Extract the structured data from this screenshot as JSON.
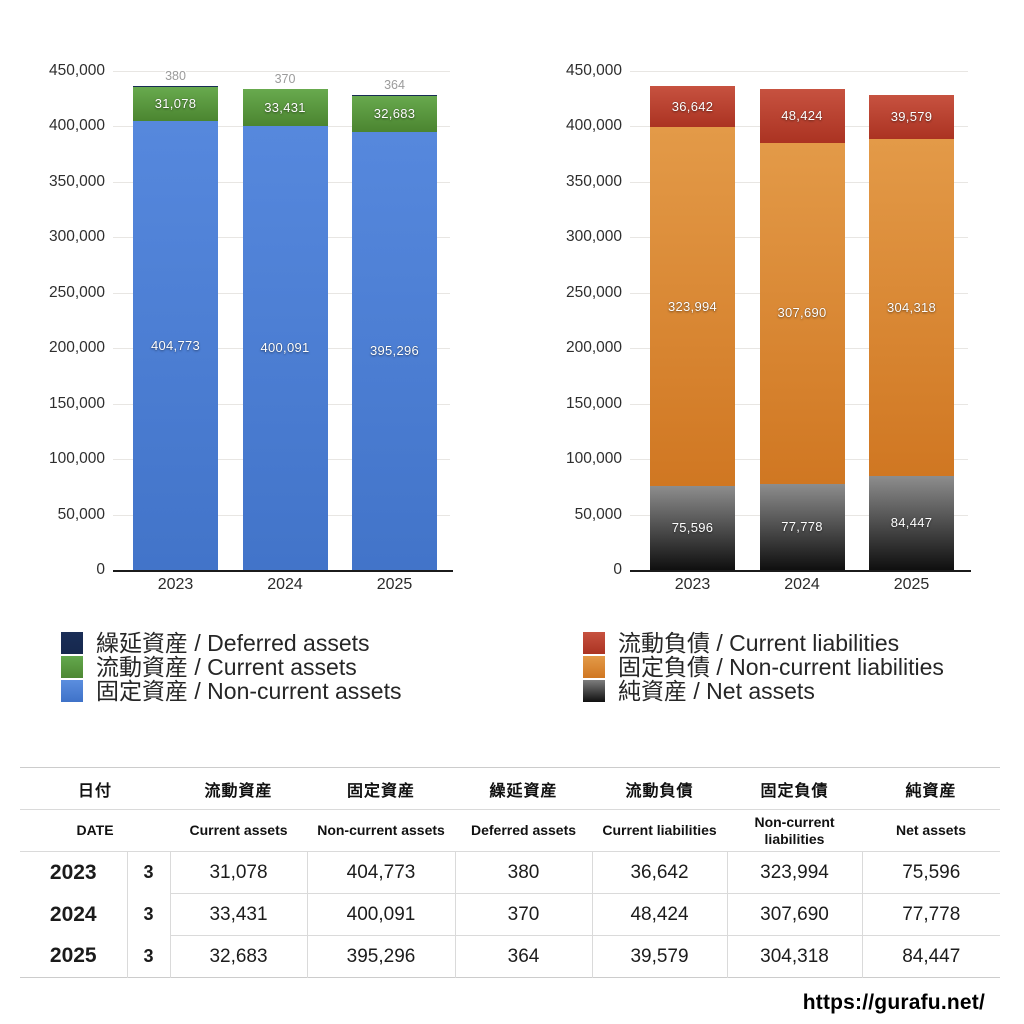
{
  "chart_data": [
    {
      "type": "bar",
      "variant": "stacked",
      "id": "assets",
      "categories": [
        "2023",
        "2024",
        "2025"
      ],
      "ylim": [
        0,
        450000
      ],
      "y_tick_step": 50000,
      "grid": true,
      "y_tick_labels": [
        "450,000",
        "400,000",
        "350,000",
        "300,000",
        "250,000",
        "200,000",
        "150,000",
        "100,000",
        "50,000",
        "0"
      ],
      "series": [
        {
          "name": "固定資産 / Non-current assets",
          "values": [
            404773,
            400091,
            395296
          ],
          "labels": [
            "404,773",
            "400,091",
            "395,296"
          ],
          "color_top": "#5688dd",
          "color_bottom": "#4274c9",
          "label_placement": "inside"
        },
        {
          "name": "流動資産 / Current assets",
          "values": [
            31078,
            33431,
            32683
          ],
          "labels": [
            "31,078",
            "33,431",
            "32,683"
          ],
          "color_top": "#68aa4e",
          "color_bottom": "#4b8530",
          "label_placement": "inside"
        },
        {
          "name": "繰延資産 / Deferred assets",
          "values": [
            380,
            370,
            364
          ],
          "labels": [
            "380",
            "370",
            "364"
          ],
          "color_top": "#1b2f5a",
          "color_bottom": "#16284e",
          "label_placement": "above"
        }
      ],
      "legend_position": "bottom-left",
      "legend": [
        {
          "label": "繰延資産 / Deferred assets",
          "color_top": "#1a2e57",
          "color_bottom": "#16284e"
        },
        {
          "label": "流動資産 / Current assets",
          "color_top": "#63a84d",
          "color_bottom": "#4e8833"
        },
        {
          "label": "固定資産 / Non-current assets",
          "color_top": "#5b8edf",
          "color_bottom": "#3f72c8"
        }
      ]
    },
    {
      "type": "bar",
      "variant": "stacked",
      "id": "liabilities-net-assets",
      "categories": [
        "2023",
        "2024",
        "2025"
      ],
      "ylim": [
        0,
        450000
      ],
      "y_tick_step": 50000,
      "grid": true,
      "y_tick_labels": [
        "450,000",
        "400,000",
        "350,000",
        "300,000",
        "250,000",
        "200,000",
        "150,000",
        "100,000",
        "50,000",
        "0"
      ],
      "series": [
        {
          "name": "純資産 / Net assets",
          "values": [
            75596,
            77778,
            84447
          ],
          "labels": [
            "75,596",
            "77,778",
            "84,447"
          ],
          "color_top": "#8d8d8d",
          "color_bottom": "#0f0f0f",
          "label_placement": "inside"
        },
        {
          "name": "固定負債 / Non-current liabilities",
          "values": [
            323994,
            307690,
            304318
          ],
          "labels": [
            "323,994",
            "307,690",
            "304,318"
          ],
          "color_top": "#e39a48",
          "color_bottom": "#d07722",
          "label_placement": "inside"
        },
        {
          "name": "流動負債 / Current liabilities",
          "values": [
            36642,
            48424,
            39579
          ],
          "labels": [
            "36,642",
            "48,424",
            "39,579"
          ],
          "color_top": "#c75240",
          "color_bottom": "#ab3322",
          "label_placement": "inside"
        }
      ],
      "legend_position": "bottom-left",
      "legend": [
        {
          "label": "流動負債 / Current liabilities",
          "color_top": "#c75240",
          "color_bottom": "#ab3322"
        },
        {
          "label": "固定負債 / Non-current liabilities",
          "color_top": "#e39a48",
          "color_bottom": "#d07722"
        },
        {
          "label": "純資産 / Net assets",
          "color_top": "#7d7d7d",
          "color_bottom": "#101010"
        }
      ]
    }
  ],
  "table": {
    "columns_ja": [
      "日付",
      "流動資産",
      "固定資産",
      "繰延資産",
      "流動負債",
      "固定負債",
      "純資産"
    ],
    "columns_en": [
      "DATE",
      "Current assets",
      "Non-current assets",
      "Deferred assets",
      "Current liabilities",
      "Non-current liabilities",
      "Net assets"
    ],
    "rows": [
      {
        "year": "2023",
        "month": "3",
        "values": [
          "31,078",
          "404,773",
          "380",
          "36,642",
          "323,994",
          "75,596"
        ]
      },
      {
        "year": "2024",
        "month": "3",
        "values": [
          "33,431",
          "400,091",
          "370",
          "48,424",
          "307,690",
          "77,778"
        ]
      },
      {
        "year": "2025",
        "month": "3",
        "values": [
          "32,683",
          "395,296",
          "364",
          "39,579",
          "304,318",
          "84,447"
        ]
      }
    ]
  },
  "footer": {
    "url": "https://gurafu.net/"
  }
}
